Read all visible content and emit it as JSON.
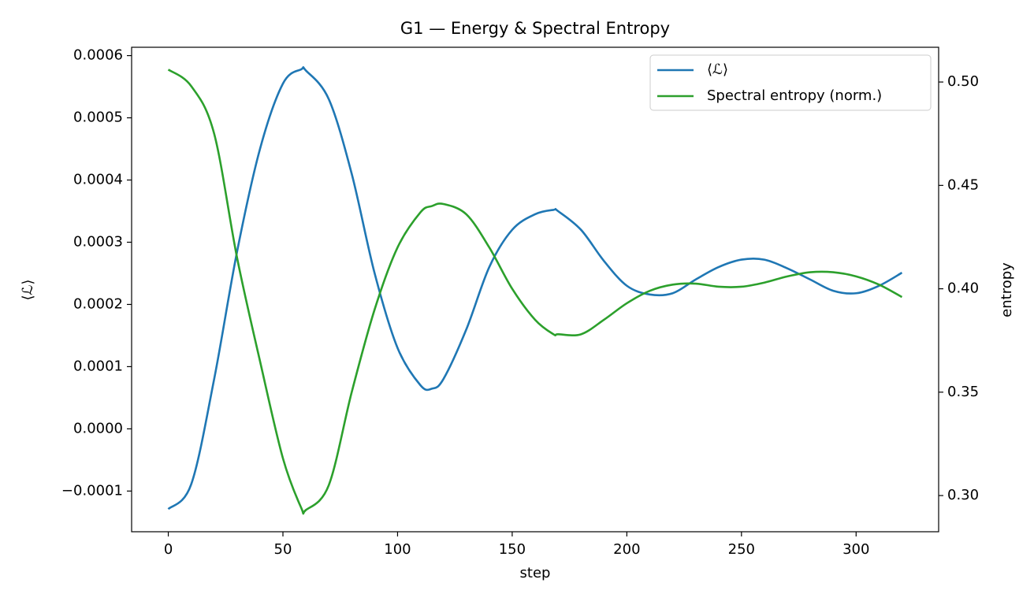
{
  "chart_data": {
    "type": "line",
    "title": "G1 — Energy & Spectral Entropy",
    "xlabel": "step",
    "ylabel": "⟨ℒ⟩",
    "y2label": "entropy",
    "x": [
      0,
      10,
      20,
      30,
      40,
      50,
      58,
      60,
      70,
      80,
      90,
      100,
      110,
      115,
      120,
      130,
      140,
      150,
      160,
      168,
      170,
      180,
      190,
      200,
      210,
      220,
      230,
      240,
      250,
      260,
      270,
      280,
      290,
      300,
      310,
      320
    ],
    "series": [
      {
        "name": "⟨ℒ⟩",
        "color": "#1f77b4",
        "axis": "y",
        "values": [
          -0.000129,
          -8.9e-05,
          8e-05,
          0.000285,
          0.00045,
          0.000555,
          0.000578,
          0.000576,
          0.00053,
          0.00041,
          0.00025,
          0.00013,
          7e-05,
          6.46e-05,
          8e-05,
          0.00016,
          0.00026,
          0.00032,
          0.000345,
          0.000352,
          0.00035,
          0.00032,
          0.00027,
          0.00023,
          0.000216,
          0.000218,
          0.00024,
          0.00026,
          0.000272,
          0.000272,
          0.000258,
          0.00024,
          0.000222,
          0.000218,
          0.00023,
          0.000251
        ]
      },
      {
        "name": "Spectral entropy (norm.)",
        "color": "#2ca02c",
        "axis": "y2",
        "values": [
          0.506,
          0.498,
          0.475,
          0.415,
          0.365,
          0.318,
          0.294,
          0.293,
          0.305,
          0.35,
          0.39,
          0.42,
          0.437,
          0.44,
          0.441,
          0.436,
          0.42,
          0.4,
          0.385,
          0.378,
          0.378,
          0.378,
          0.385,
          0.393,
          0.399,
          0.402,
          0.4025,
          0.401,
          0.401,
          0.403,
          0.406,
          0.408,
          0.408,
          0.406,
          0.402,
          0.396
        ]
      }
    ],
    "xlim": [
      -16,
      336
    ],
    "xticks": [
      0,
      50,
      100,
      150,
      200,
      250,
      300
    ],
    "ylim": [
      -0.0001654,
      0.0006134
    ],
    "yticks": [
      {
        "value": -0.0001,
        "label": "−0.0001"
      },
      {
        "value": 0,
        "label": "0.0000"
      },
      0.0001,
      0.0002,
      0.0003,
      0.0004,
      0.0005,
      0.0006
    ],
    "y2lim": [
      0.2825,
      0.5168
    ],
    "y2ticks": [
      {
        "value": 0.3,
        "label": "0.30"
      },
      0.35,
      {
        "value": 0.4,
        "label": "0.40"
      },
      0.45,
      {
        "value": 0.5,
        "label": "0.50"
      }
    ],
    "legend": "upper right"
  }
}
